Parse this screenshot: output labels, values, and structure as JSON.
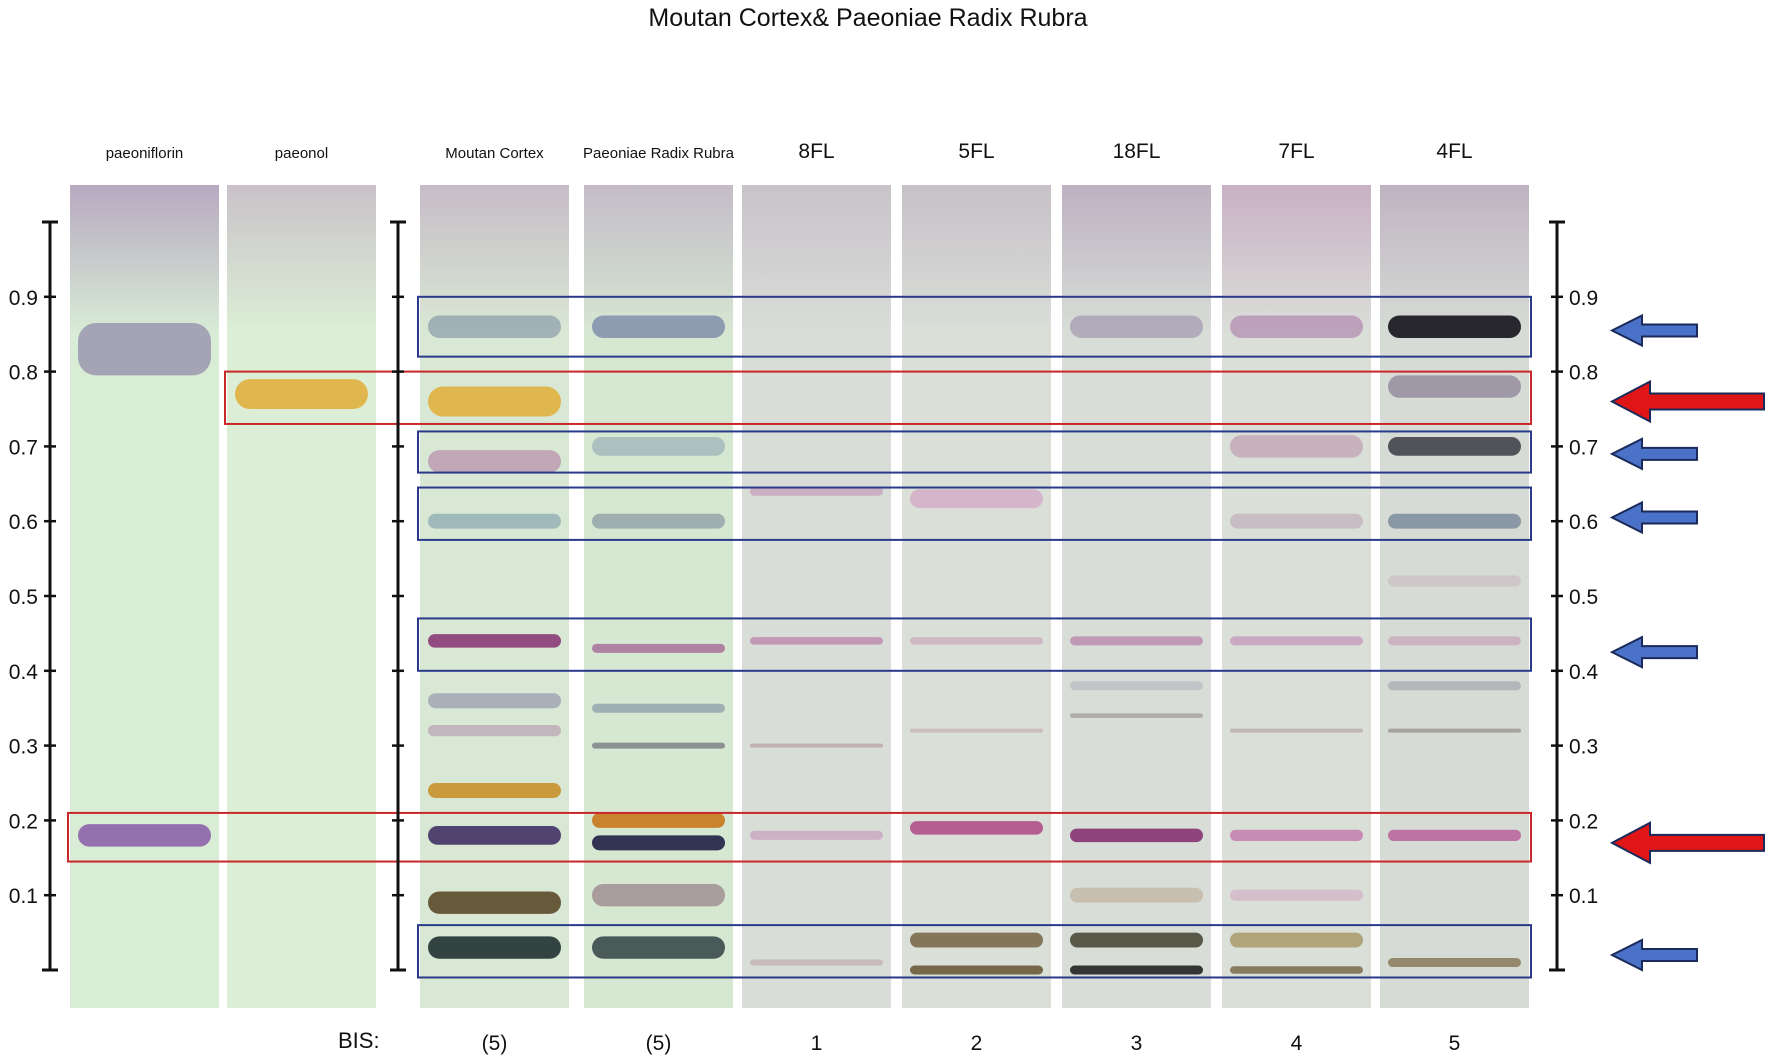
{
  "title": "Moutan Cortex& Paeoniae Radix Rubra",
  "rf_axis": {
    "range": [
      0,
      1.0
    ],
    "tick_labels": [
      "0.9",
      "0.8",
      "0.7",
      "0.6",
      "0.5",
      "0.4",
      "0.3",
      "0.2",
      "0.1"
    ]
  },
  "bis_label": "BIS:",
  "lanes": [
    {
      "header": "paeoniflorin",
      "header_style": "small",
      "bis": "",
      "bg": "#d8ecd6",
      "top_tint": "#b7a9c0",
      "bands": [
        {
          "rf": 0.83,
          "color": "#7a6a9a",
          "intensity": 0.55,
          "width": 0.07
        },
        {
          "rf": 0.18,
          "color": "#8a5aa8",
          "intensity": 0.85,
          "width": 0.03
        }
      ]
    },
    {
      "header": "paeonol",
      "header_style": "small",
      "bis": "",
      "bg": "#dcefd6",
      "top_tint": "#c9c2c9",
      "bands": [
        {
          "rf": 0.77,
          "color": "#e0b040",
          "intensity": 0.9,
          "width": 0.04
        }
      ]
    },
    {
      "header": "Moutan Cortex",
      "header_style": "small",
      "bis": "(5)",
      "bg": "#d9e8d4",
      "top_tint": "#c6bcc7",
      "bands": [
        {
          "rf": 0.86,
          "color": "#8a9aa8",
          "intensity": 0.7,
          "width": 0.03
        },
        {
          "rf": 0.76,
          "color": "#e0b040",
          "intensity": 0.9,
          "width": 0.04
        },
        {
          "rf": 0.68,
          "color": "#b07aa0",
          "intensity": 0.6,
          "width": 0.03
        },
        {
          "rf": 0.6,
          "color": "#7a9aa8",
          "intensity": 0.6,
          "width": 0.02
        },
        {
          "rf": 0.44,
          "color": "#8a3a78",
          "intensity": 0.9,
          "width": 0.018
        },
        {
          "rf": 0.36,
          "color": "#8a8aa8",
          "intensity": 0.6,
          "width": 0.02
        },
        {
          "rf": 0.32,
          "color": "#b08aa8",
          "intensity": 0.55,
          "width": 0.015
        },
        {
          "rf": 0.24,
          "color": "#c8902a",
          "intensity": 0.9,
          "width": 0.02
        },
        {
          "rf": 0.18,
          "color": "#4a3a6a",
          "intensity": 0.95,
          "width": 0.025
        },
        {
          "rf": 0.09,
          "color": "#5a4a2a",
          "intensity": 0.9,
          "width": 0.03
        },
        {
          "rf": 0.03,
          "color": "#2a3a3a",
          "intensity": 0.95,
          "width": 0.03
        }
      ]
    },
    {
      "header": "Paeoniae Radix Rubra",
      "header_style": "small",
      "bis": "(5)",
      "bg": "#d6e7d2",
      "top_tint": "#c4bcc8",
      "bands": [
        {
          "rf": 0.86,
          "color": "#7a8aa8",
          "intensity": 0.8,
          "width": 0.03
        },
        {
          "rf": 0.7,
          "color": "#8aa0b0",
          "intensity": 0.55,
          "width": 0.025
        },
        {
          "rf": 0.6,
          "color": "#7a8a98",
          "intensity": 0.6,
          "width": 0.02
        },
        {
          "rf": 0.43,
          "color": "#9a4a88",
          "intensity": 0.65,
          "width": 0.012
        },
        {
          "rf": 0.35,
          "color": "#7a8aa0",
          "intensity": 0.6,
          "width": 0.012
        },
        {
          "rf": 0.3,
          "color": "#5a5a6a",
          "intensity": 0.6,
          "width": 0.008
        },
        {
          "rf": 0.2,
          "color": "#c8781a",
          "intensity": 0.9,
          "width": 0.02
        },
        {
          "rf": 0.17,
          "color": "#2a2a4a",
          "intensity": 0.95,
          "width": 0.02
        },
        {
          "rf": 0.1,
          "color": "#8a6a7a",
          "intensity": 0.6,
          "width": 0.03
        },
        {
          "rf": 0.03,
          "color": "#3a4a4a",
          "intensity": 0.9,
          "width": 0.03
        }
      ]
    },
    {
      "header": "8FL",
      "header_style": "large",
      "bis": "1",
      "bg": "#d9ddd8",
      "top_tint": "#c9c3ca",
      "bands": [
        {
          "rf": 0.64,
          "color": "#c08ab0",
          "intensity": 0.55,
          "width": 0.012
        },
        {
          "rf": 0.44,
          "color": "#b06aa0",
          "intensity": 0.6,
          "width": 0.01
        },
        {
          "rf": 0.3,
          "color": "#a0707a",
          "intensity": 0.4,
          "width": 0.004
        },
        {
          "rf": 0.18,
          "color": "#c08ab8",
          "intensity": 0.55,
          "width": 0.012
        },
        {
          "rf": 0.01,
          "color": "#b08a90",
          "intensity": 0.4,
          "width": 0.008
        }
      ]
    },
    {
      "header": "5FL",
      "header_style": "large",
      "bis": "2",
      "bg": "#dadfd8",
      "top_tint": "#c7c0c8",
      "bands": [
        {
          "rf": 0.63,
          "color": "#d09ac0",
          "intensity": 0.6,
          "width": 0.025
        },
        {
          "rf": 0.44,
          "color": "#c08ab0",
          "intensity": 0.45,
          "width": 0.01
        },
        {
          "rf": 0.32,
          "color": "#b08080",
          "intensity": 0.35,
          "width": 0.004
        },
        {
          "rf": 0.19,
          "color": "#b0508a",
          "intensity": 0.9,
          "width": 0.018
        },
        {
          "rf": 0.04,
          "color": "#7a6a4a",
          "intensity": 0.9,
          "width": 0.02
        },
        {
          "rf": 0.0,
          "color": "#6a5a3a",
          "intensity": 0.9,
          "width": 0.012
        }
      ]
    },
    {
      "header": "18FL",
      "header_style": "large",
      "bis": "3",
      "bg": "#d8ded7",
      "top_tint": "#bdb1c2",
      "bands": [
        {
          "rf": 0.86,
          "color": "#9a8aa8",
          "intensity": 0.6,
          "width": 0.03
        },
        {
          "rf": 0.44,
          "color": "#b06aa0",
          "intensity": 0.6,
          "width": 0.012
        },
        {
          "rf": 0.38,
          "color": "#a0a0b0",
          "intensity": 0.4,
          "width": 0.012
        },
        {
          "rf": 0.34,
          "color": "#8a7a7a",
          "intensity": 0.5,
          "width": 0.006
        },
        {
          "rf": 0.18,
          "color": "#8a3a78",
          "intensity": 0.95,
          "width": 0.018
        },
        {
          "rf": 0.1,
          "color": "#b8a08a",
          "intensity": 0.5,
          "width": 0.02
        },
        {
          "rf": 0.04,
          "color": "#4a4a3a",
          "intensity": 0.9,
          "width": 0.02
        },
        {
          "rf": 0.0,
          "color": "#2a2a2a",
          "intensity": 0.95,
          "width": 0.012
        }
      ]
    },
    {
      "header": "7FL",
      "header_style": "large",
      "bis": "4",
      "bg": "#dadfd8",
      "top_tint": "#c9b0c6",
      "bands": [
        {
          "rf": 0.86,
          "color": "#aa7aa8",
          "intensity": 0.6,
          "width": 0.03
        },
        {
          "rf": 0.7,
          "color": "#b88aa8",
          "intensity": 0.55,
          "width": 0.03
        },
        {
          "rf": 0.6,
          "color": "#b08aa8",
          "intensity": 0.4,
          "width": 0.02
        },
        {
          "rf": 0.44,
          "color": "#c07ab0",
          "intensity": 0.55,
          "width": 0.012
        },
        {
          "rf": 0.32,
          "color": "#9a7a7a",
          "intensity": 0.4,
          "width": 0.005
        },
        {
          "rf": 0.18,
          "color": "#c070a8",
          "intensity": 0.75,
          "width": 0.015
        },
        {
          "rf": 0.1,
          "color": "#d0a0c0",
          "intensity": 0.5,
          "width": 0.015
        },
        {
          "rf": 0.04,
          "color": "#a89a6a",
          "intensity": 0.85,
          "width": 0.02
        },
        {
          "rf": 0.0,
          "color": "#7a6a4a",
          "intensity": 0.85,
          "width": 0.01
        }
      ]
    },
    {
      "header": "4FL",
      "header_style": "large",
      "bis": "5",
      "bg": "#d6dcd5",
      "top_tint": "#bfb3c2",
      "bands": [
        {
          "rf": 0.86,
          "color": "#1e1e24",
          "intensity": 0.95,
          "width": 0.03
        },
        {
          "rf": 0.78,
          "color": "#7a6a88",
          "intensity": 0.6,
          "width": 0.03
        },
        {
          "rf": 0.7,
          "color": "#3a3a44",
          "intensity": 0.85,
          "width": 0.025
        },
        {
          "rf": 0.6,
          "color": "#6a7a90",
          "intensity": 0.7,
          "width": 0.02
        },
        {
          "rf": 0.52,
          "color": "#c0a0b8",
          "intensity": 0.35,
          "width": 0.015
        },
        {
          "rf": 0.44,
          "color": "#c08ab0",
          "intensity": 0.5,
          "width": 0.012
        },
        {
          "rf": 0.38,
          "color": "#8a8a9a",
          "intensity": 0.45,
          "width": 0.012
        },
        {
          "rf": 0.32,
          "color": "#7a6a6a",
          "intensity": 0.5,
          "width": 0.005
        },
        {
          "rf": 0.18,
          "color": "#b8609a",
          "intensity": 0.85,
          "width": 0.015
        },
        {
          "rf": 0.01,
          "color": "#8a7a5a",
          "intensity": 0.85,
          "width": 0.012
        }
      ]
    }
  ],
  "highlight_boxes": [
    {
      "color": "#c8282a",
      "rf_top": 0.8,
      "rf_bottom": 0.73,
      "from_lane": 1,
      "to_lane": 8
    },
    {
      "color": "#c8282a",
      "rf_top": 0.21,
      "rf_bottom": 0.145,
      "from_lane": 0,
      "to_lane": 8
    },
    {
      "color": "#2a3a8a",
      "rf_top": 0.9,
      "rf_bottom": 0.82,
      "from_lane": 2,
      "to_lane": 8
    },
    {
      "color": "#2a3a8a",
      "rf_top": 0.72,
      "rf_bottom": 0.665,
      "from_lane": 2,
      "to_lane": 8
    },
    {
      "color": "#2a3a8a",
      "rf_top": 0.645,
      "rf_bottom": 0.575,
      "from_lane": 2,
      "to_lane": 8
    },
    {
      "color": "#2a3a8a",
      "rf_top": 0.47,
      "rf_bottom": 0.4,
      "from_lane": 2,
      "to_lane": 8
    },
    {
      "color": "#2a3a8a",
      "rf_top": 0.06,
      "rf_bottom": -0.01,
      "from_lane": 2,
      "to_lane": 8
    }
  ],
  "arrows": [
    {
      "color": "#4a72c8",
      "size": "small",
      "rf": 0.855
    },
    {
      "color": "#e01616",
      "size": "large",
      "rf": 0.76
    },
    {
      "color": "#4a72c8",
      "size": "small",
      "rf": 0.69
    },
    {
      "color": "#4a72c8",
      "size": "small",
      "rf": 0.605
    },
    {
      "color": "#4a72c8",
      "size": "small",
      "rf": 0.425
    },
    {
      "color": "#e01616",
      "size": "large",
      "rf": 0.17
    },
    {
      "color": "#4a72c8",
      "size": "small",
      "rf": 0.02
    }
  ]
}
